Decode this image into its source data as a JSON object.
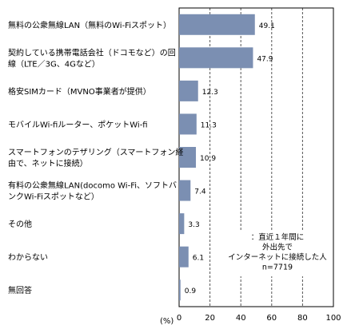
{
  "chart_data": {
    "type": "bar",
    "orientation": "horizontal",
    "categories": [
      [
        "無料の公衆無線LAN（無料のWi-Fiスポット）"
      ],
      [
        "契約している携帯電話会社（ドコモなど）の回",
        "線（LTE／3G、4Gなど）"
      ],
      [
        "格安SIMカード（MVNO事業者が提供）"
      ],
      [
        "モバイルWi-fiルーター、ポケットWi-fi"
      ],
      [
        "スマートフォンのテザリング（スマートフォン経",
        "由で、ネットに接続）"
      ],
      [
        "有料の公衆無線LAN(docomo Wi-Fi、ソフトバ",
        "ンクWi-Fiスポットなど）"
      ],
      [
        "その他"
      ],
      [
        "わからない"
      ],
      [
        "無回答"
      ]
    ],
    "values": [
      49.1,
      47.9,
      12.3,
      11.3,
      10.9,
      7.4,
      3.3,
      6.1,
      0.9
    ],
    "value_labels": [
      "49.1",
      "47.9",
      "12.3",
      "11.3",
      "10.9",
      "7.4",
      "3.3",
      "6.1",
      "0.9"
    ],
    "xlim": [
      0,
      100
    ],
    "xticks": [
      "0",
      "20",
      "40",
      "60",
      "80",
      "100"
    ],
    "xlabel": "(%)",
    "grid": "vertical dashed",
    "bar_color": "#7b8fb2",
    "annotation": [
      "：直近１年間に",
      "外出先で",
      "インターネットに接続した人",
      "n=7719"
    ]
  }
}
